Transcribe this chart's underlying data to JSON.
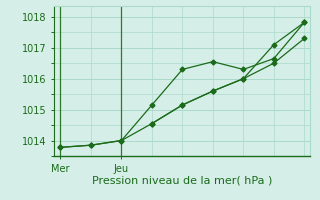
{
  "line1_x": [
    0,
    1,
    2,
    3,
    4,
    5,
    6,
    7,
    8
  ],
  "line1_y": [
    1013.78,
    1013.85,
    1014.0,
    1015.15,
    1016.3,
    1016.55,
    1016.3,
    1016.65,
    1017.82
  ],
  "line2_x": [
    0,
    1,
    2,
    3,
    4,
    5,
    6,
    7,
    8
  ],
  "line2_y": [
    1013.78,
    1013.85,
    1014.0,
    1014.55,
    1015.15,
    1015.6,
    1016.0,
    1016.5,
    1017.3
  ],
  "line3_x": [
    3,
    4,
    5,
    6,
    7,
    8
  ],
  "line3_y": [
    1014.55,
    1015.15,
    1015.6,
    1016.0,
    1017.1,
    1017.82
  ],
  "line_color": "#1a6b1a",
  "marker": "D",
  "marker_size": 2.5,
  "ylim": [
    1013.5,
    1018.35
  ],
  "yticks": [
    1014,
    1015,
    1016,
    1017,
    1018
  ],
  "xlabel": "Pression niveau de la mer( hPa )",
  "xtick_labels": [
    "Mer",
    "Jeu"
  ],
  "xtick_positions": [
    0,
    2
  ],
  "vline_positions": [
    0,
    2
  ],
  "grid_color": "#aadaca",
  "bg_color": "#d6eee8",
  "vline_color": "#2a7a2a",
  "xlabel_color": "#1a6b1a",
  "xlabel_fontsize": 8,
  "tick_fontsize": 7,
  "xlim": [
    -0.2,
    8.2
  ]
}
